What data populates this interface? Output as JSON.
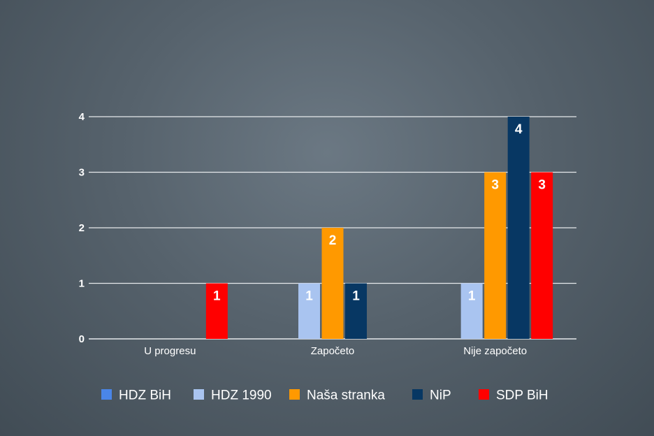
{
  "chart_data": {
    "type": "bar",
    "categories": [
      "U progresu",
      "Započeto",
      "Nije započeto"
    ],
    "series": [
      {
        "name": "HDZ BiH",
        "color": "#4a86e8",
        "values": [
          0,
          0,
          0
        ]
      },
      {
        "name": "HDZ 1990",
        "color": "#a9c4f0",
        "values": [
          0,
          1,
          1
        ]
      },
      {
        "name": "Naša stranka",
        "color": "#ff9900",
        "values": [
          0,
          2,
          3
        ]
      },
      {
        "name": "NiP",
        "color": "#073763",
        "values": [
          0,
          1,
          4
        ]
      },
      {
        "name": "SDP BiH",
        "color": "#ff0000",
        "values": [
          1,
          0,
          3
        ]
      }
    ],
    "ylim": [
      0,
      4
    ],
    "yticks": [
      "0",
      "1",
      "2",
      "3",
      "4"
    ],
    "grid": true,
    "legend_position": "bottom"
  }
}
